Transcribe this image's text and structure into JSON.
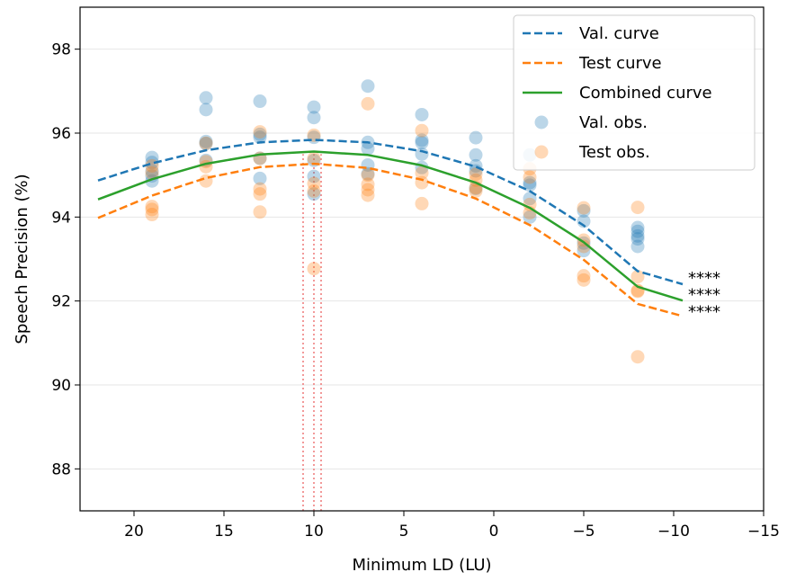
{
  "chart_data": {
    "type": "scatter",
    "xlabel": "Minimum LD (LU)",
    "ylabel": "Speech Precision (%)",
    "xlim": [
      23,
      -15
    ],
    "ylim": [
      87,
      99
    ],
    "x_inverted": true,
    "x_ticks": [
      20,
      15,
      10,
      5,
      0,
      -5,
      -10,
      -15
    ],
    "x_tick_labels": [
      "20",
      "15",
      "10",
      "5",
      "0",
      "−5",
      "−10",
      "−15"
    ],
    "y_ticks": [
      88,
      90,
      92,
      94,
      96,
      98
    ],
    "y_tick_labels": [
      "88",
      "90",
      "92",
      "94",
      "96",
      "98"
    ],
    "grid": "horizontal",
    "legend_position": "top-right",
    "colors": {
      "val": "#1f77b4",
      "test": "#ff7f0e",
      "combined": "#2ca02c",
      "vline": "#f08080"
    },
    "curves": [
      {
        "name": "Val. curve",
        "style": "dashed",
        "color": "#1f77b4",
        "x": [
          22,
          19,
          16,
          13,
          10,
          7,
          4,
          1,
          -2,
          -5,
          -8,
          -10.5
        ],
        "y": [
          94.87,
          95.28,
          95.59,
          95.78,
          95.84,
          95.78,
          95.57,
          95.2,
          94.62,
          93.8,
          92.71,
          92.4
        ]
      },
      {
        "name": "Test curve",
        "style": "dashed",
        "color": "#ff7f0e",
        "x": [
          22,
          19,
          16,
          13,
          10,
          7,
          4,
          1,
          -2,
          -5,
          -8,
          -10.5
        ],
        "y": [
          93.98,
          94.51,
          94.93,
          95.19,
          95.27,
          95.17,
          94.89,
          94.44,
          93.81,
          92.98,
          91.93,
          91.64
        ]
      },
      {
        "name": "Combined curve",
        "style": "solid",
        "color": "#2ca02c",
        "x": [
          22,
          19,
          16,
          13,
          10,
          7,
          4,
          1,
          -2,
          -5,
          -8,
          -10.5
        ],
        "y": [
          94.42,
          94.9,
          95.27,
          95.49,
          95.56,
          95.48,
          95.23,
          94.82,
          94.22,
          93.4,
          92.34,
          92.01
        ]
      }
    ],
    "scatter": [
      {
        "name": "Val. obs.",
        "color": "#1f77b4",
        "points": [
          [
            19,
            95.42
          ],
          [
            19,
            95.3
          ],
          [
            19,
            94.98
          ],
          [
            19,
            94.86
          ],
          [
            19,
            95.1
          ],
          [
            16,
            96.84
          ],
          [
            16,
            96.56
          ],
          [
            16,
            95.8
          ],
          [
            16,
            95.75
          ],
          [
            16,
            95.35
          ],
          [
            13,
            96.76
          ],
          [
            13,
            95.97
          ],
          [
            13,
            95.9
          ],
          [
            13,
            95.4
          ],
          [
            13,
            94.92
          ],
          [
            10,
            96.62
          ],
          [
            10,
            96.37
          ],
          [
            10,
            95.9
          ],
          [
            10,
            95.35
          ],
          [
            10,
            94.97
          ],
          [
            10,
            94.55
          ],
          [
            7,
            97.12
          ],
          [
            7,
            95.78
          ],
          [
            7,
            95.63
          ],
          [
            7,
            95.24
          ],
          [
            7,
            95.03
          ],
          [
            4,
            96.44
          ],
          [
            4,
            95.83
          ],
          [
            4,
            95.77
          ],
          [
            4,
            95.5
          ],
          [
            4,
            95.18
          ],
          [
            1,
            95.89
          ],
          [
            1,
            95.48
          ],
          [
            1,
            95.22
          ],
          [
            1,
            95.1
          ],
          [
            1,
            94.68
          ],
          [
            -2,
            95.48
          ],
          [
            -2,
            94.82
          ],
          [
            -2,
            94.76
          ],
          [
            -2,
            94.44
          ],
          [
            -2,
            94.0
          ],
          [
            -5,
            94.15
          ],
          [
            -5,
            93.9
          ],
          [
            -5,
            93.38
          ],
          [
            -5,
            93.2
          ],
          [
            -8,
            93.75
          ],
          [
            -8,
            93.66
          ],
          [
            -8,
            93.55
          ],
          [
            -8,
            93.48
          ],
          [
            -8,
            93.3
          ]
        ]
      },
      {
        "name": "Test obs.",
        "color": "#ff7f0e",
        "points": [
          [
            19,
            95.22
          ],
          [
            19,
            95.05
          ],
          [
            19,
            94.25
          ],
          [
            19,
            94.18
          ],
          [
            19,
            94.06
          ],
          [
            16,
            95.76
          ],
          [
            16,
            95.32
          ],
          [
            16,
            95.2
          ],
          [
            16,
            94.86
          ],
          [
            13,
            96.03
          ],
          [
            13,
            95.4
          ],
          [
            13,
            94.67
          ],
          [
            13,
            94.55
          ],
          [
            13,
            94.12
          ],
          [
            10,
            95.95
          ],
          [
            10,
            95.4
          ],
          [
            10,
            94.8
          ],
          [
            10,
            94.62
          ],
          [
            10,
            92.77
          ],
          [
            7,
            96.7
          ],
          [
            7,
            95.0
          ],
          [
            7,
            94.78
          ],
          [
            7,
            94.65
          ],
          [
            7,
            94.52
          ],
          [
            4,
            96.06
          ],
          [
            4,
            95.05
          ],
          [
            4,
            94.82
          ],
          [
            4,
            94.32
          ],
          [
            1,
            95.02
          ],
          [
            1,
            94.88
          ],
          [
            1,
            94.7
          ],
          [
            1,
            94.62
          ],
          [
            -2,
            95.15
          ],
          [
            -2,
            94.95
          ],
          [
            -2,
            94.3
          ],
          [
            -2,
            94.1
          ],
          [
            -5,
            94.22
          ],
          [
            -5,
            93.45
          ],
          [
            -5,
            93.3
          ],
          [
            -5,
            92.6
          ],
          [
            -5,
            92.5
          ],
          [
            -8,
            94.23
          ],
          [
            -8,
            92.58
          ],
          [
            -8,
            92.25
          ],
          [
            -8,
            92.23
          ],
          [
            -8,
            90.67
          ]
        ]
      }
    ],
    "vertical_lines": [
      {
        "x": 10.6,
        "style": "dotted",
        "color": "#f08080"
      },
      {
        "x": 10.0,
        "style": "dotted",
        "color": "#f08080"
      },
      {
        "x": 9.6,
        "style": "dotted",
        "color": "#f08080"
      }
    ],
    "annotations": [
      {
        "text": "****",
        "x": -10.8,
        "y": 92.55
      },
      {
        "text": "****",
        "x": -10.8,
        "y": 92.15
      },
      {
        "text": "****",
        "x": -10.8,
        "y": 91.75
      }
    ],
    "legend": [
      {
        "label": "Val. curve",
        "kind": "line-dashed",
        "color": "#1f77b4"
      },
      {
        "label": "Test curve",
        "kind": "line-dashed",
        "color": "#ff7f0e"
      },
      {
        "label": "Combined curve",
        "kind": "line-solid",
        "color": "#2ca02c"
      },
      {
        "label": "Val. obs.",
        "kind": "marker",
        "color": "#1f77b4"
      },
      {
        "label": "Test obs.",
        "kind": "marker",
        "color": "#ff7f0e"
      }
    ]
  }
}
